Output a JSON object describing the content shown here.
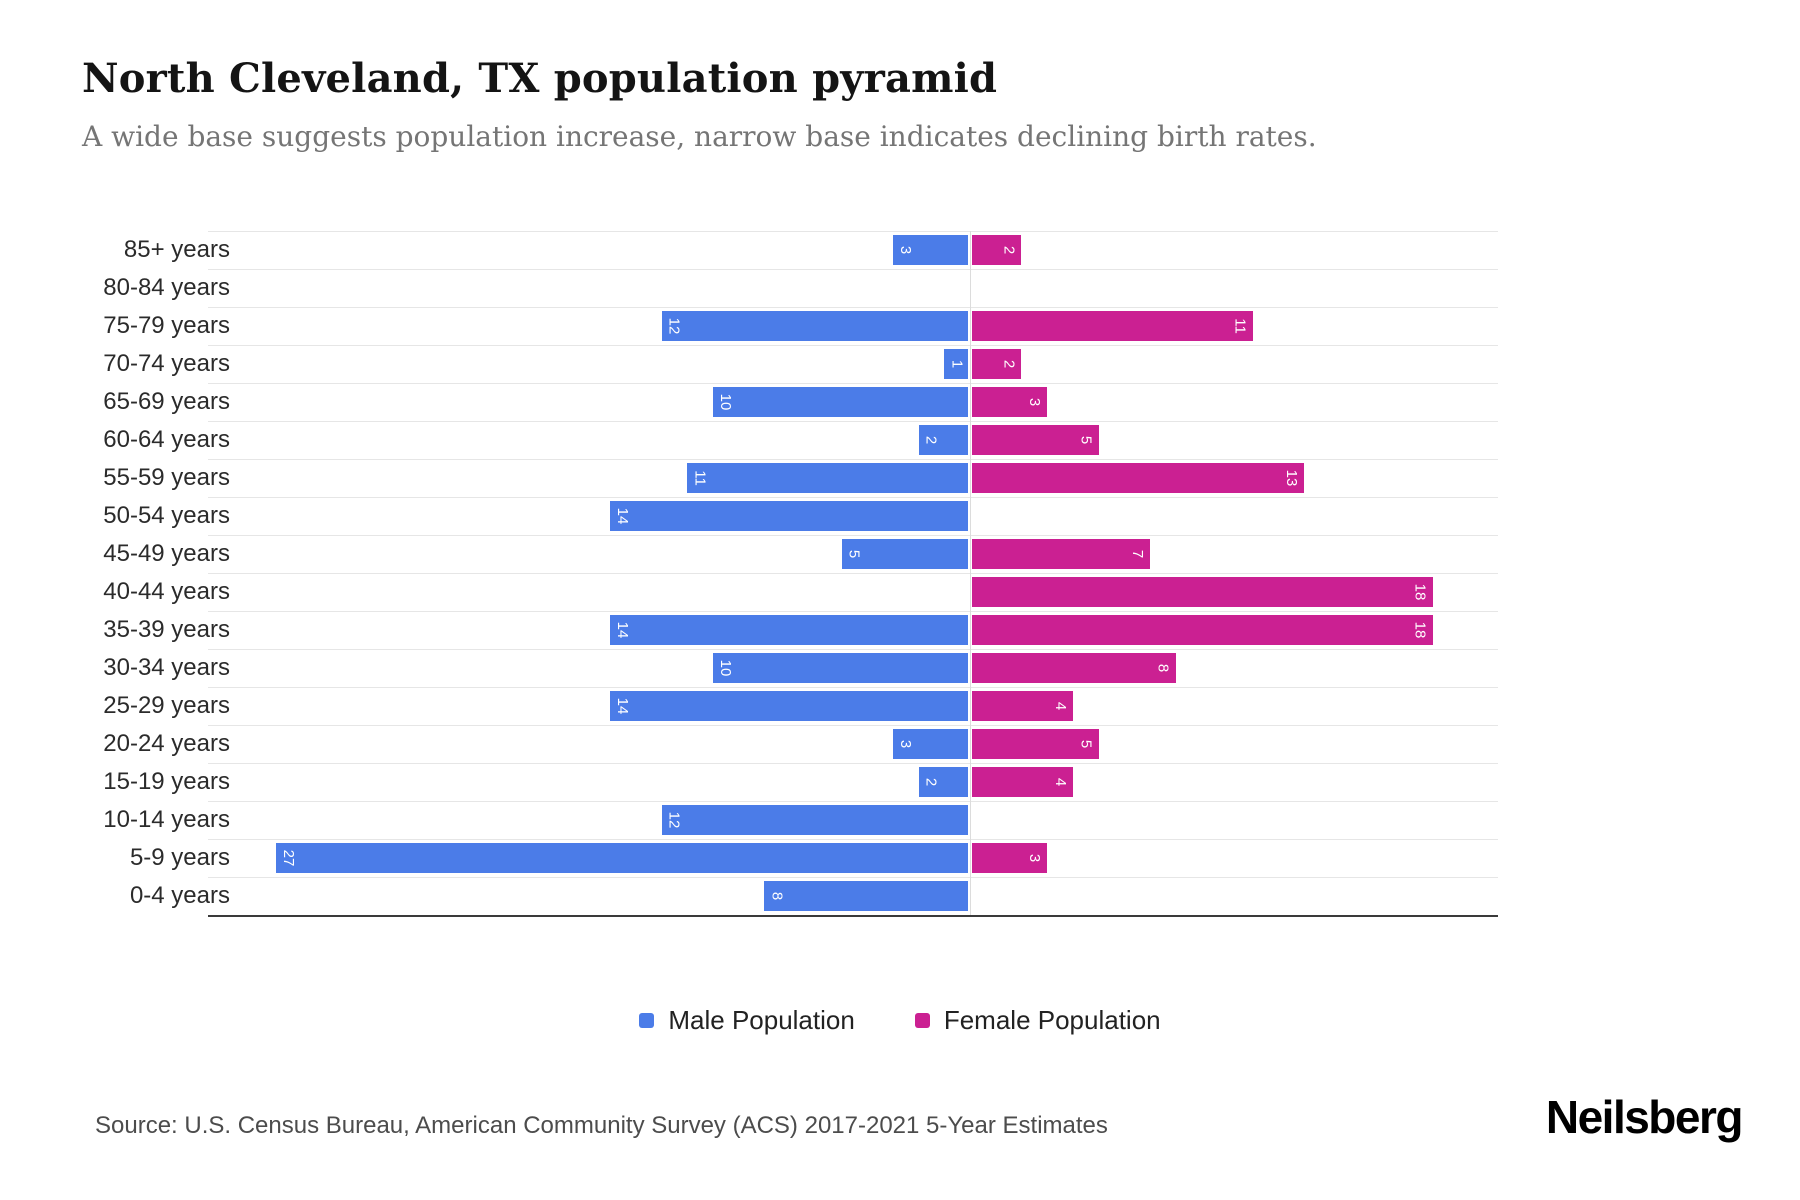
{
  "chart_data": {
    "type": "bar",
    "variant": "population-pyramid",
    "title": "North Cleveland, TX population pyramid",
    "subtitle": "A wide base suggests population increase, narrow base indicates declining birth rates.",
    "categories": [
      "85+ years",
      "80-84 years",
      "75-79 years",
      "70-74 years",
      "65-69 years",
      "60-64 years",
      "55-59 years",
      "50-54 years",
      "45-49 years",
      "40-44 years",
      "35-39 years",
      "30-34 years",
      "25-29 years",
      "20-24 years",
      "15-19 years",
      "10-14 years",
      "5-9 years",
      "0-4 years"
    ],
    "series": [
      {
        "name": "Male Population",
        "color": "#4b7ce8",
        "direction": "left",
        "values": [
          3,
          0,
          12,
          1,
          10,
          2,
          11,
          14,
          5,
          0,
          14,
          10,
          14,
          3,
          2,
          12,
          27,
          8
        ]
      },
      {
        "name": "Female Population",
        "color": "#cb2092",
        "direction": "right",
        "values": [
          2,
          0,
          11,
          2,
          3,
          5,
          13,
          0,
          7,
          18,
          18,
          8,
          4,
          5,
          4,
          0,
          3,
          0
        ]
      }
    ],
    "axis": {
      "male_side_max": 28,
      "female_side_max": 20
    },
    "grid": true,
    "legend_position": "bottom",
    "data_labels": "inside bar ends, rotated 90 degrees, white"
  },
  "footer": {
    "source": "Source: U.S. Census Bureau, American Community Survey (ACS) 2017-2021 5-Year Estimates",
    "logo": "Neilsberg"
  }
}
